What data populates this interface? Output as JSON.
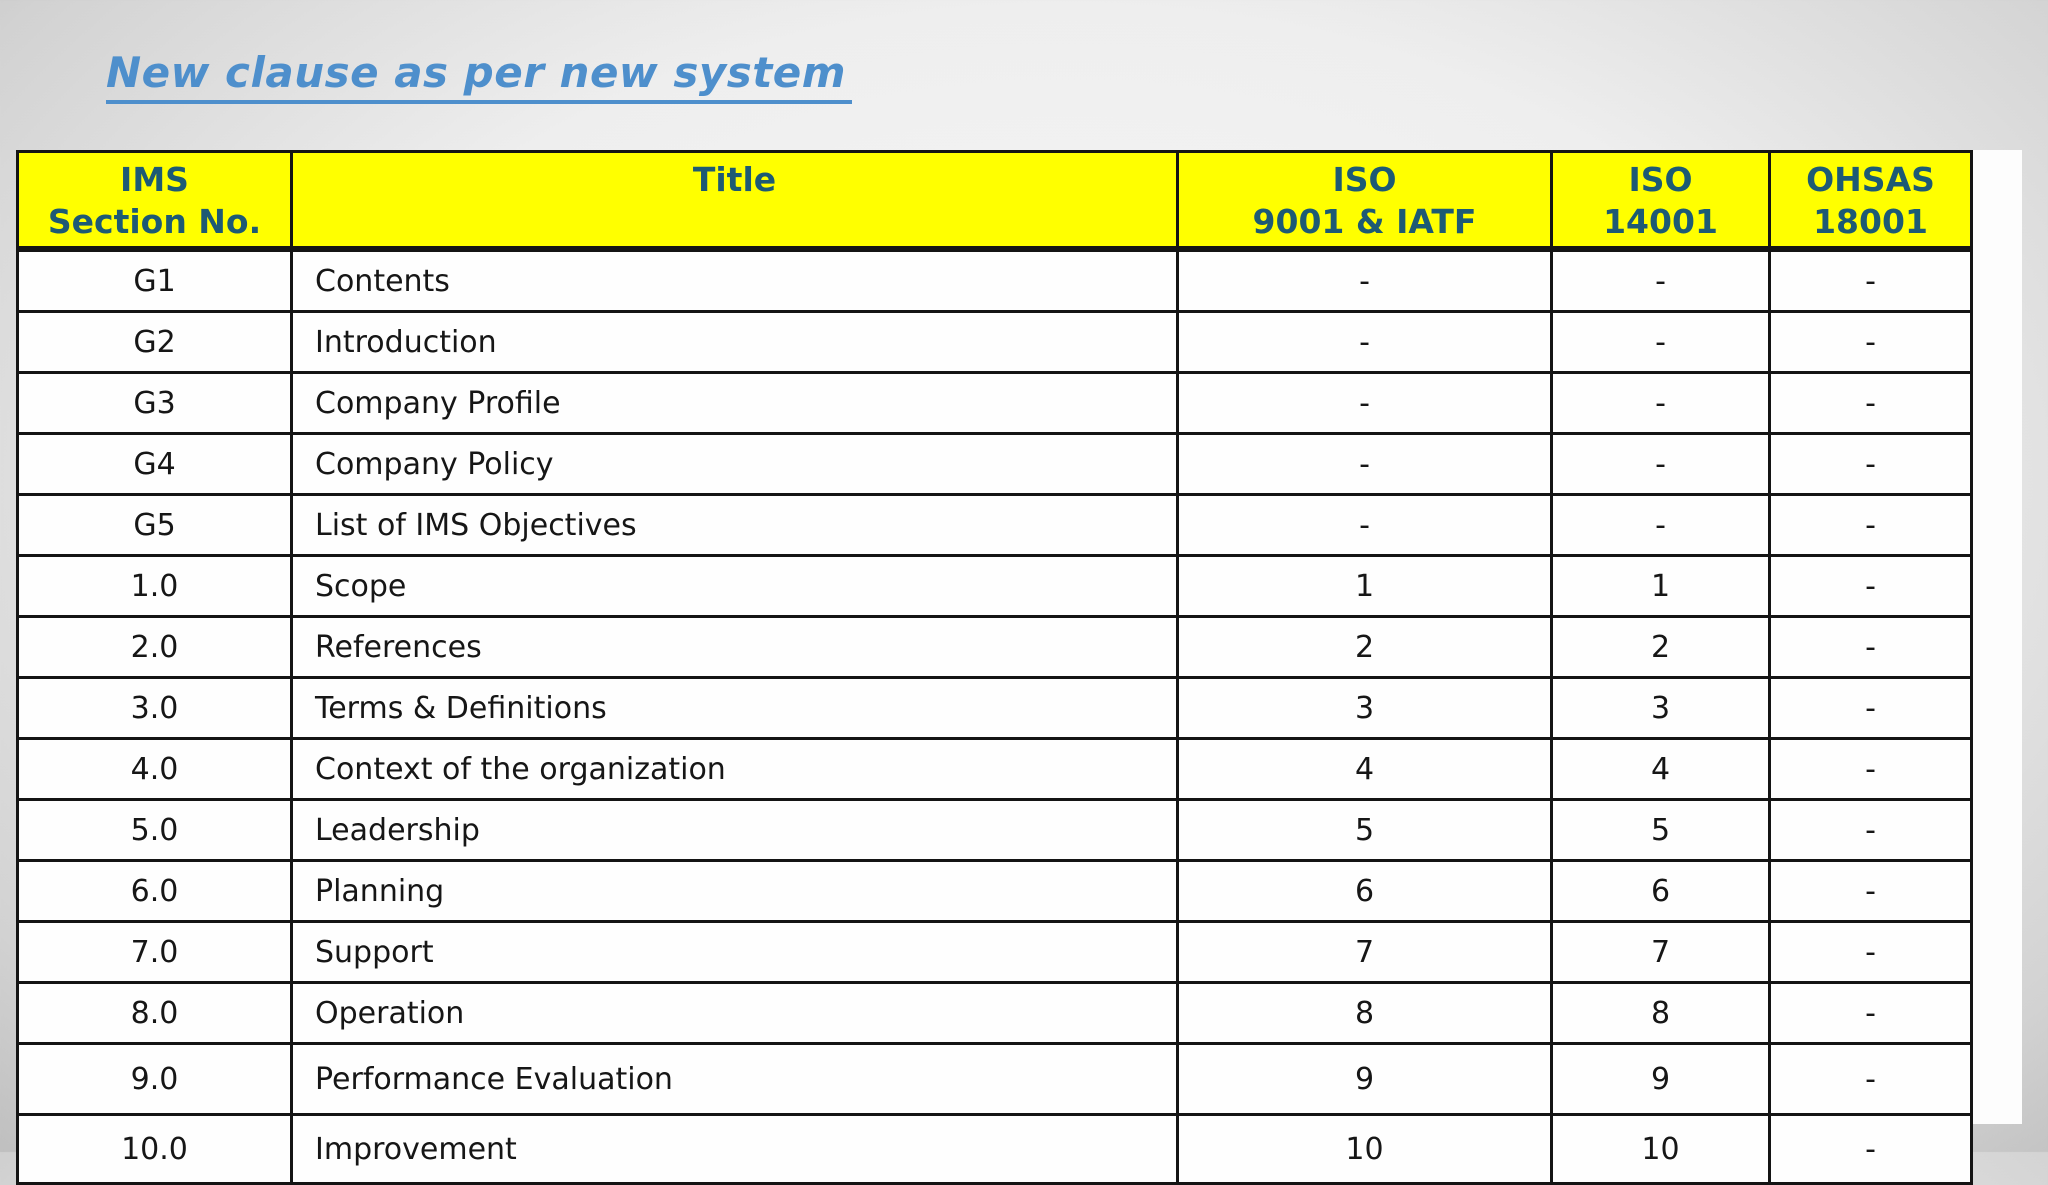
{
  "page": {
    "title": "New clause as per new system"
  },
  "colors": {
    "title_text": "#4e8fcc",
    "header_bg": "#ffff00",
    "header_text": "#1d5a74",
    "border": "#141414"
  },
  "table": {
    "headers": [
      {
        "id": "ims-section",
        "label": "IMS\nSection No."
      },
      {
        "id": "title",
        "label": "Title"
      },
      {
        "id": "iso-9001-iatf",
        "label": "ISO\n9001 & IATF"
      },
      {
        "id": "iso-14001",
        "label": "ISO\n14001"
      },
      {
        "id": "ohsas-18001",
        "label": "OHSAS\n18001"
      }
    ],
    "rows": [
      {
        "cells": [
          "G1",
          "Contents",
          "-",
          "-",
          "-"
        ]
      },
      {
        "cells": [
          "G2",
          "Introduction",
          "-",
          "-",
          "-"
        ]
      },
      {
        "cells": [
          "G3",
          "Company Profile",
          "-",
          "-",
          "-"
        ]
      },
      {
        "cells": [
          "G4",
          "Company Policy",
          "-",
          "-",
          "-"
        ]
      },
      {
        "cells": [
          "G5",
          "List of IMS Objectives",
          "-",
          "-",
          "-"
        ]
      },
      {
        "cells": [
          "1.0",
          "Scope",
          "1",
          "1",
          "-"
        ]
      },
      {
        "cells": [
          "2.0",
          "References",
          "2",
          "2",
          "-"
        ]
      },
      {
        "cells": [
          "3.0",
          "Terms & Definitions",
          "3",
          "3",
          "-"
        ]
      },
      {
        "cells": [
          "4.0",
          "Context of the organization",
          "4",
          "4",
          "-"
        ]
      },
      {
        "cells": [
          "5.0",
          "Leadership",
          "5",
          "5",
          "-"
        ]
      },
      {
        "cells": [
          "6.0",
          "Planning",
          "6",
          "6",
          "-"
        ]
      },
      {
        "cells": [
          "7.0",
          "Support",
          "7",
          "7",
          "-"
        ]
      },
      {
        "cells": [
          "8.0",
          "Operation",
          "8",
          "8",
          "-"
        ]
      },
      {
        "cells": [
          "9.0",
          "Performance Evaluation",
          "9",
          "9",
          "-"
        ]
      },
      {
        "cells": [
          "10.0",
          "Improvement",
          "10",
          "10",
          "-"
        ]
      }
    ]
  }
}
